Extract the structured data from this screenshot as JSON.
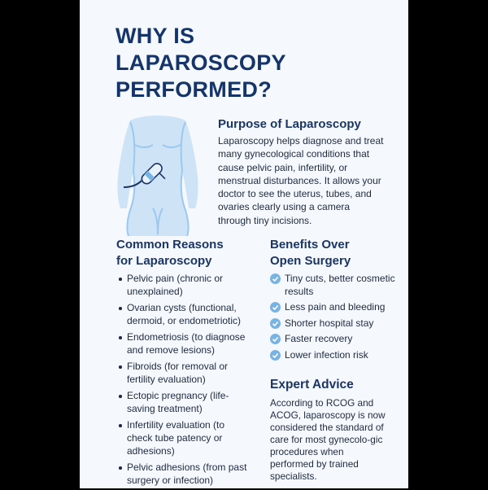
{
  "title": {
    "line1": "WHY IS",
    "line2": "LAPAROSCOPY",
    "line3": "PERFORMED?"
  },
  "purpose": {
    "heading": "Purpose of Laparoscopy",
    "text": "Laparoscopy helps diagnose and treat many gynecological conditions that cause pelvic pain, infertility, or menstrual disturbances. It allows your doctor to see the uterus, tubes, and ovaries clearly using a camera through tiny incisions."
  },
  "reasons": {
    "heading": "Common Reasons for Laparoscopy",
    "items": [
      "Pelvic pain (chronic or unexplained)",
      "Ovarian cysts (functional, dermoid, or endometriotic)",
      "Endometriosis (to diagnose and remove lesions)",
      "Fibroids (for removal or fertility evaluation)",
      "Ectopic pregnancy (life-saving treatment)",
      "Infertility evaluation (to check tube patency or adhesions)",
      "Pelvic adhesions (from past surgery or infection)"
    ]
  },
  "benefits": {
    "heading": "Benefits Over Open Surgery",
    "icon": "check-circle-icon",
    "items": [
      "Tiny cuts, better cosmetic results",
      "Less pain and bleeding",
      "Shorter hospital stay",
      "Faster recovery",
      "Lower infection risk"
    ]
  },
  "advice": {
    "heading": "Expert Advice",
    "text": "According to RCOG and ACOG, laparoscopy is now considered the standard of care for most gynecolo-gic procedures when performed by trained specialists."
  },
  "colors": {
    "title": "#15346a",
    "check": "#79b3e3",
    "figure": "#cfe3f7",
    "background": "#f5f9fd"
  }
}
